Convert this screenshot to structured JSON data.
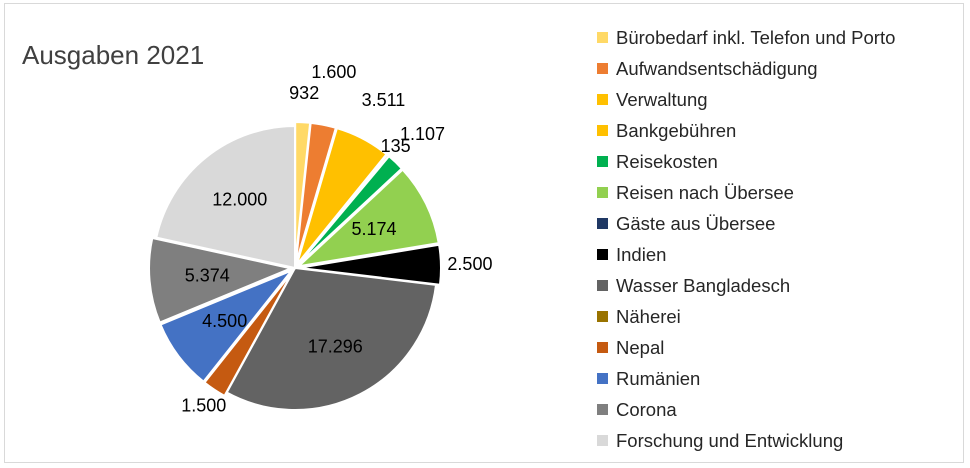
{
  "chart_data": {
    "type": "pie",
    "title": "Ausgaben 2021",
    "legend_position": "right",
    "slices": [
      {
        "label": "Bürobedarf inkl. Telefon und Porto",
        "value": 932,
        "display": "932",
        "color": "#ffd966"
      },
      {
        "label": "Aufwandsentschädigung",
        "value": 1600,
        "display": "1.600",
        "color": "#ed7d31"
      },
      {
        "label": "Verwaltung",
        "value": 3511,
        "display": "3.511",
        "color": "#ffc000"
      },
      {
        "label": "Bankgebühren",
        "value": 135,
        "display": "135",
        "color": "#ffc000"
      },
      {
        "label": "Reisekosten",
        "value": 1107,
        "display": "1.107",
        "color": "#00b050"
      },
      {
        "label": "Reisen nach Übersee",
        "value": 5174,
        "display": "5.174",
        "color": "#92d050"
      },
      {
        "label": "Gäste aus Übersee",
        "value": 0,
        "display": "",
        "color": "#1f3864"
      },
      {
        "label": "Indien",
        "value": 2500,
        "display": "2.500",
        "color": "#000000"
      },
      {
        "label": "Wasser Bangladesch",
        "value": 17296,
        "display": "17.296",
        "color": "#636363"
      },
      {
        "label": "Näherei",
        "value": 0,
        "display": "",
        "color": "#997300"
      },
      {
        "label": "Nepal",
        "value": 1500,
        "display": "1.500",
        "color": "#c55a11"
      },
      {
        "label": "Rumänien",
        "value": 4500,
        "display": "4.500",
        "color": "#4472c4"
      },
      {
        "label": "Corona",
        "value": 5374,
        "display": "5.374",
        "color": "#7f7f7f"
      },
      {
        "label": "Forschung und Entwicklung",
        "value": 12000,
        "display": "12.000",
        "color": "#d9d9d9"
      }
    ]
  }
}
